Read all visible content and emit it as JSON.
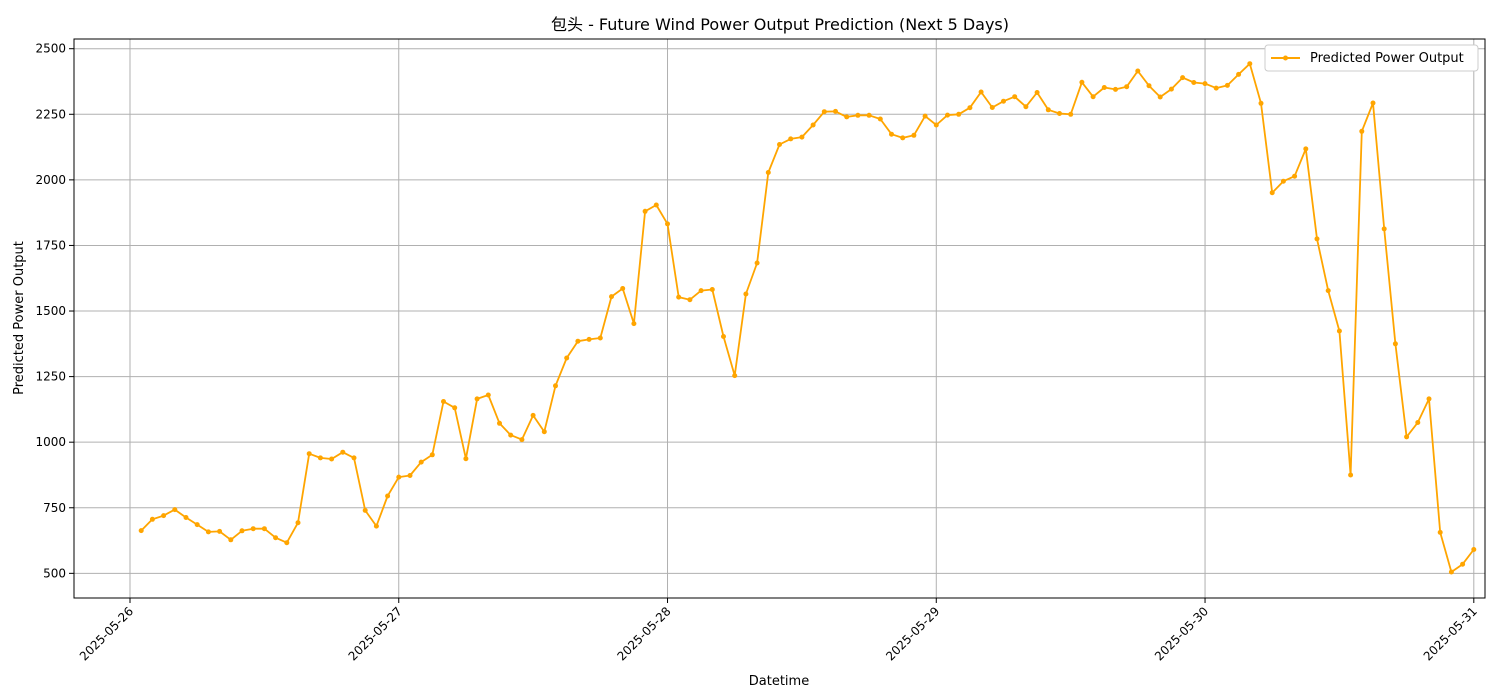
{
  "chart_data": {
    "type": "line",
    "title": "包头 - Future Wind Power Output Prediction (Next 5 Days)",
    "xlabel": "Datetime",
    "ylabel": "Predicted Power Output",
    "x_tick_labels": [
      "2025-05-26",
      "2025-05-27",
      "2025-05-28",
      "2025-05-29",
      "2025-05-30",
      "2025-05-31"
    ],
    "y_ticks": [
      500,
      750,
      1000,
      1250,
      1500,
      1750,
      2000,
      2250,
      2500
    ],
    "x_range": [
      "2025-05-25 19:00",
      "2025-05-31 01:00"
    ],
    "ylim": [
      406,
      2537
    ],
    "grid": true,
    "legend_position": "top-right",
    "series": [
      {
        "name": "Predicted Power Output",
        "color": "#FFA500",
        "x": [
          "2025-05-26 01:00",
          "2025-05-26 02:00",
          "2025-05-26 03:00",
          "2025-05-26 04:00",
          "2025-05-26 05:00",
          "2025-05-26 06:00",
          "2025-05-26 07:00",
          "2025-05-26 08:00",
          "2025-05-26 09:00",
          "2025-05-26 10:00",
          "2025-05-26 11:00",
          "2025-05-26 12:00",
          "2025-05-26 13:00",
          "2025-05-26 14:00",
          "2025-05-26 15:00",
          "2025-05-26 16:00",
          "2025-05-26 17:00",
          "2025-05-26 18:00",
          "2025-05-26 19:00",
          "2025-05-26 20:00",
          "2025-05-26 21:00",
          "2025-05-26 22:00",
          "2025-05-26 23:00",
          "2025-05-27 00:00",
          "2025-05-27 01:00",
          "2025-05-27 02:00",
          "2025-05-27 03:00",
          "2025-05-27 04:00",
          "2025-05-27 05:00",
          "2025-05-27 06:00",
          "2025-05-27 07:00",
          "2025-05-27 08:00",
          "2025-05-27 09:00",
          "2025-05-27 10:00",
          "2025-05-27 11:00",
          "2025-05-27 12:00",
          "2025-05-27 13:00",
          "2025-05-27 14:00",
          "2025-05-27 15:00",
          "2025-05-27 16:00",
          "2025-05-27 17:00",
          "2025-05-27 18:00",
          "2025-05-27 19:00",
          "2025-05-27 20:00",
          "2025-05-27 21:00",
          "2025-05-27 22:00",
          "2025-05-27 23:00",
          "2025-05-28 00:00",
          "2025-05-28 01:00",
          "2025-05-28 02:00",
          "2025-05-28 03:00",
          "2025-05-28 04:00",
          "2025-05-28 05:00",
          "2025-05-28 06:00",
          "2025-05-28 07:00",
          "2025-05-28 08:00",
          "2025-05-28 09:00",
          "2025-05-28 10:00",
          "2025-05-28 11:00",
          "2025-05-28 12:00",
          "2025-05-28 13:00",
          "2025-05-28 14:00",
          "2025-05-28 15:00",
          "2025-05-28 16:00",
          "2025-05-28 17:00",
          "2025-05-28 18:00",
          "2025-05-28 19:00",
          "2025-05-28 20:00",
          "2025-05-28 21:00",
          "2025-05-28 22:00",
          "2025-05-28 23:00",
          "2025-05-29 00:00",
          "2025-05-29 01:00",
          "2025-05-29 02:00",
          "2025-05-29 03:00",
          "2025-05-29 04:00",
          "2025-05-29 05:00",
          "2025-05-29 06:00",
          "2025-05-29 07:00",
          "2025-05-29 08:00",
          "2025-05-29 09:00",
          "2025-05-29 10:00",
          "2025-05-29 11:00",
          "2025-05-29 12:00",
          "2025-05-29 13:00",
          "2025-05-29 14:00",
          "2025-05-29 15:00",
          "2025-05-29 16:00",
          "2025-05-29 17:00",
          "2025-05-29 18:00",
          "2025-05-29 19:00",
          "2025-05-29 20:00",
          "2025-05-29 21:00",
          "2025-05-29 22:00",
          "2025-05-29 23:00",
          "2025-05-30 00:00",
          "2025-05-30 01:00",
          "2025-05-30 02:00",
          "2025-05-30 03:00",
          "2025-05-30 04:00",
          "2025-05-30 05:00",
          "2025-05-30 06:00",
          "2025-05-30 07:00",
          "2025-05-30 08:00",
          "2025-05-30 09:00",
          "2025-05-30 10:00",
          "2025-05-30 11:00",
          "2025-05-30 12:00",
          "2025-05-30 13:00",
          "2025-05-30 14:00",
          "2025-05-30 15:00",
          "2025-05-30 16:00",
          "2025-05-30 17:00",
          "2025-05-30 18:00",
          "2025-05-30 19:00",
          "2025-05-30 20:00",
          "2025-05-30 21:00",
          "2025-05-30 22:00",
          "2025-05-30 23:00",
          "2025-05-31 00:00"
        ],
        "values": [
          663,
          706,
          720,
          743,
          713,
          686,
          658,
          660,
          628,
          662,
          670,
          670,
          636,
          617,
          693,
          956,
          940,
          936,
          962,
          940,
          740,
          680,
          795,
          867,
          873,
          924,
          952,
          1155,
          1131,
          937,
          1165,
          1180,
          1072,
          1027,
          1010,
          1102,
          1040,
          1215,
          1321,
          1385,
          1392,
          1397,
          1555,
          1586,
          1452,
          1880,
          1904,
          1832,
          1553,
          1543,
          1578,
          1582,
          1403,
          1254,
          1565,
          1683,
          2028,
          2135,
          2156,
          2163,
          2209,
          2260,
          2261,
          2240,
          2246,
          2246,
          2232,
          2174,
          2160,
          2170,
          2243,
          2209,
          2247,
          2250,
          2275,
          2335,
          2276,
          2300,
          2317,
          2279,
          2333,
          2267,
          2253,
          2250,
          2372,
          2317,
          2352,
          2345,
          2355,
          2415,
          2359,
          2316,
          2346,
          2390,
          2371,
          2367,
          2350,
          2360,
          2402,
          2443,
          2292,
          1951,
          1995,
          2014,
          2118,
          1775,
          1578,
          1424,
          875,
          2185,
          2293,
          1813,
          1375,
          1020,
          1075,
          1165,
          656,
          505,
          535,
          591
        ]
      }
    ]
  }
}
